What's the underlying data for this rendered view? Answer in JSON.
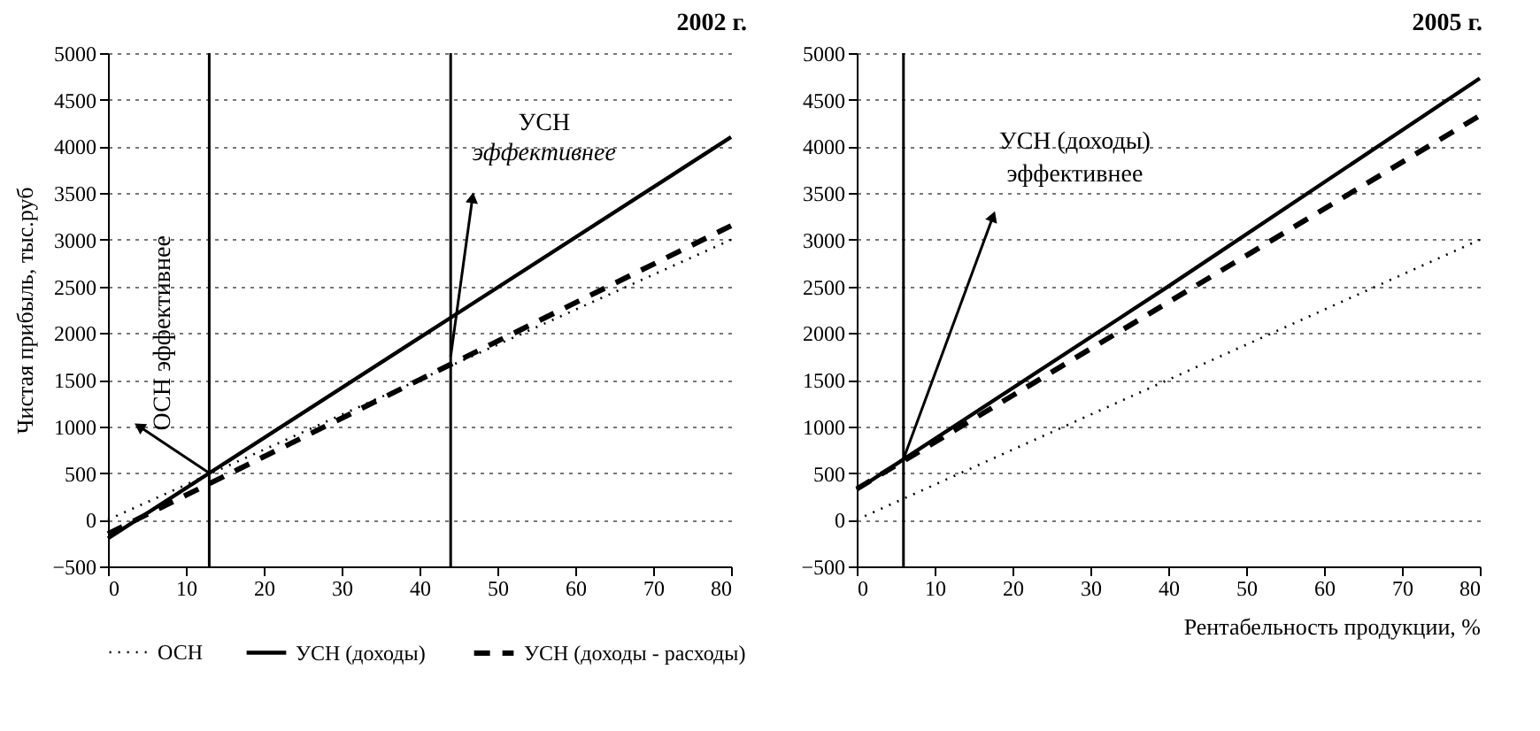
{
  "chart_data": [
    {
      "type": "line",
      "title": "2002 г.",
      "ylabel": "Чистая прибыль, тыс.руб",
      "xlim": [
        0,
        80
      ],
      "xticks": [
        0,
        10,
        20,
        30,
        40,
        50,
        60,
        70,
        80
      ],
      "ylim": [
        -500,
        5000
      ],
      "yticks": [
        -500,
        0,
        500,
        1000,
        1500,
        2000,
        2500,
        3000,
        3500,
        4000,
        4500,
        5000
      ],
      "grid": "y",
      "legend": "bottom",
      "series": [
        {
          "name": "ОСН",
          "color": "#000000",
          "line_style": "dotted",
          "x": [
            0,
            40,
            80
          ],
          "values": [
            0,
            1500,
            3000
          ]
        },
        {
          "name": "УСН (доходы)",
          "color": "#000000",
          "line_style": "solid",
          "x": [
            0,
            40,
            80
          ],
          "values": [
            -200,
            1950,
            4100
          ]
        },
        {
          "name": "УСН (доходы - расходы)",
          "color": "#000000",
          "line_style": "dashed",
          "x": [
            0,
            40,
            80
          ],
          "values": [
            -150,
            1500,
            3150
          ]
        }
      ],
      "ref_lines": [
        {
          "axis": "x",
          "value": 13,
          "color": "#000000"
        },
        {
          "axis": "x",
          "value": 44,
          "color": "#000000"
        }
      ],
      "annotations": [
        {
          "text": "ОСН эффективнее",
          "x": 13,
          "y": 500
        },
        "УСН",
        {
          "text": "эффективнее",
          "x": 44,
          "y": 1750
        }
      ]
    },
    {
      "type": "line",
      "title": "2005 г.",
      "xlabel": "Рентабельность продукции, %",
      "xlim": [
        0,
        80
      ],
      "xticks": [
        0,
        10,
        20,
        30,
        40,
        50,
        60,
        70,
        80
      ],
      "ylim": [
        -500,
        5000
      ],
      "yticks": [
        -500,
        0,
        500,
        1000,
        1500,
        2000,
        2500,
        3000,
        3500,
        4000,
        4500,
        5000
      ],
      "grid": "y",
      "series": [
        {
          "color": "#000000",
          "line_style": "dotted",
          "x": [
            0,
            40,
            80
          ],
          "values": [
            0,
            1500,
            3000
          ]
        },
        {
          "color": "#000000",
          "line_style": "solid",
          "x": [
            0,
            40,
            80
          ],
          "values": [
            320,
            2500,
            4730
          ]
        },
        {
          "color": "#000000",
          "line_style": "dashed",
          "x": [
            0,
            40,
            80
          ],
          "values": [
            330,
            2330,
            4330
          ]
        }
      ],
      "ref_lines": [
        {
          "axis": "x",
          "value": 6,
          "color": "#000000"
        }
      ],
      "annotations": [
        "УСН (доходы)",
        {
          "text": "эффективнее",
          "x": 6,
          "y": 650
        }
      ]
    }
  ]
}
